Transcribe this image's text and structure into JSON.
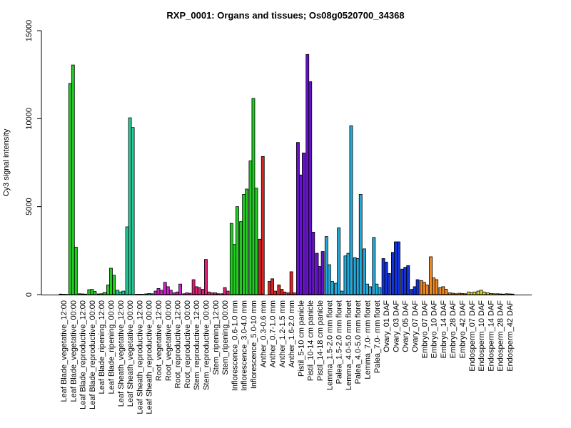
{
  "chart_data": {
    "type": "bar",
    "title": "RXP_0001: Organs and tissues; Os08g0520700_34368",
    "xlabel": "",
    "ylabel": "Cy3 signal intensity",
    "ylim": [
      0,
      15000
    ],
    "y_ticks": [
      0,
      5000,
      10000,
      15000
    ],
    "bar_border_color": "#000000",
    "groups": [
      {
        "label": "Leaf Blade_vegetative_12:00",
        "color": "#22cc22",
        "values": [
          30,
          20,
          15
        ]
      },
      {
        "label": "Leaf Blade_vegetative_00:00",
        "color": "#22cc22",
        "values": [
          12000,
          13050,
          2700
        ]
      },
      {
        "label": "Leaf Blade_reproductive_12:00",
        "color": "#22cc22",
        "values": [
          50,
          40,
          30
        ]
      },
      {
        "label": "Leaf Blade_reproductive_00:00",
        "color": "#22cc22",
        "values": [
          280,
          300,
          180
        ]
      },
      {
        "label": "Leaf Blade_ripening_12:00",
        "color": "#22cc22",
        "values": [
          40,
          50,
          120
        ]
      },
      {
        "label": "Leaf Blade_ripening_00:00",
        "color": "#22cc22",
        "values": [
          550,
          1500,
          1100
        ]
      },
      {
        "label": "Leaf Sheath_vegetative_12:00",
        "color": "#22cc99",
        "values": [
          250,
          150,
          200
        ]
      },
      {
        "label": "Leaf Sheath_vegetative_00:00",
        "color": "#22cc99",
        "values": [
          3850,
          10050,
          9500
        ]
      },
      {
        "label": "Leaf Sheath_reproductive_12:00",
        "color": "#22cc99",
        "values": [
          20,
          20,
          20
        ]
      },
      {
        "label": "Leaf Sheath_reproductive_00:00",
        "color": "#22cc99",
        "values": [
          40,
          60,
          50
        ]
      },
      {
        "label": "Root_vegetative_12:00",
        "color": "#cc22cc",
        "values": [
          200,
          350,
          250
        ]
      },
      {
        "label": "Root_vegetative_00:00",
        "color": "#cc22cc",
        "values": [
          700,
          450,
          250
        ]
      },
      {
        "label": "Root_reproductive_12:00",
        "color": "#cc22cc",
        "values": [
          100,
          150,
          600
        ]
      },
      {
        "label": "Root_reproductive_00:00",
        "color": "#cc22cc",
        "values": [
          50,
          100,
          80
        ]
      },
      {
        "label": "Stem_reproductive_12:00",
        "color": "#dd2277",
        "values": [
          850,
          450,
          400
        ]
      },
      {
        "label": "Stem_reproductive_00:00",
        "color": "#dd2277",
        "values": [
          300,
          2000,
          150
        ]
      },
      {
        "label": "Stem_ripening_12:00",
        "color": "#dd2277",
        "values": [
          100,
          100,
          50
        ]
      },
      {
        "label": "Stem_ripening_00:00",
        "color": "#dd2277",
        "values": [
          50,
          400,
          200
        ]
      },
      {
        "label": "Inflorescence_0.6-1.0 mm",
        "color": "#22cc22",
        "values": [
          4050,
          2850,
          5000
        ]
      },
      {
        "label": "Inflorescence_3.0-4.0 mm",
        "color": "#22cc22",
        "values": [
          4150,
          5700,
          6000
        ]
      },
      {
        "label": "Inflorescence_5.0-10 mm",
        "color": "#22cc22",
        "values": [
          7600,
          11150,
          6050
        ]
      },
      {
        "label": "Anther_0.3-0.6 mm",
        "color": "#dd2222",
        "values": [
          3150,
          7850,
          0
        ]
      },
      {
        "label": "Anther_0.7-1.0 mm",
        "color": "#dd2222",
        "values": [
          750,
          900,
          200
        ]
      },
      {
        "label": "Anther_1.2-1.5 mm",
        "color": "#dd2222",
        "values": [
          550,
          300,
          150
        ]
      },
      {
        "label": "Anther_1.6-2.0 mm",
        "color": "#dd2222",
        "values": [
          100,
          1300,
          100
        ]
      },
      {
        "label": "Pistil_5-10 cm panicle",
        "color": "#6611cc",
        "values": [
          8650,
          6800,
          8050
        ]
      },
      {
        "label": "Pistil_10-14 cm panicle",
        "color": "#6611cc",
        "values": [
          13650,
          12100,
          3550
        ]
      },
      {
        "label": "Pistil_14-18 cm panicle",
        "color": "#6611cc",
        "values": [
          2350,
          1600,
          2450
        ]
      },
      {
        "label": "Lemma_1.5-2.0 mm floret",
        "color": "#22aadd",
        "values": [
          3300,
          1700,
          750
        ]
      },
      {
        "label": "Palea_1.5-2.0 mm floret",
        "color": "#22aadd",
        "values": [
          650,
          3800,
          200
        ]
      },
      {
        "label": "Lemma_4.0-5.0 mm floret",
        "color": "#22aadd",
        "values": [
          2200,
          2350,
          9600
        ]
      },
      {
        "label": "Palea_4.0-5.0 mm floret",
        "color": "#22aadd",
        "values": [
          2100,
          2050,
          5700
        ]
      },
      {
        "label": "Lemma_7.0- mm floret",
        "color": "#22aadd",
        "values": [
          2600,
          600,
          450
        ]
      },
      {
        "label": "Palea_7.0- mm floret",
        "color": "#22aadd",
        "values": [
          3250,
          600,
          400
        ]
      },
      {
        "label": "Ovary_01 DAF",
        "color": "#1133dd",
        "values": [
          2050,
          1850,
          1200
        ]
      },
      {
        "label": "Ovary_03 DAF",
        "color": "#1133dd",
        "values": [
          2400,
          3000,
          3000
        ]
      },
      {
        "label": "Ovary_05 DAF",
        "color": "#1133dd",
        "values": [
          1450,
          1550,
          1650
        ]
      },
      {
        "label": "Ovary_07 DAF",
        "color": "#1133dd",
        "values": [
          300,
          450,
          850
        ]
      },
      {
        "label": "Embryo_07 DAF",
        "color": "#ee8822",
        "values": [
          800,
          700,
          550
        ]
      },
      {
        "label": "Embryo_10 DAF",
        "color": "#ee8822",
        "values": [
          2150,
          950,
          850
        ]
      },
      {
        "label": "Embryo_14 DAF",
        "color": "#ee8822",
        "values": [
          400,
          450,
          300
        ]
      },
      {
        "label": "Embryo_28 DAF",
        "color": "#ee8822",
        "values": [
          100,
          80,
          50
        ]
      },
      {
        "label": "Embryo_42 DAF",
        "color": "#ee8822",
        "values": [
          80,
          60,
          50
        ]
      },
      {
        "label": "Endosperm_07 DAF",
        "color": "#dddd33",
        "values": [
          150,
          100,
          150
        ]
      },
      {
        "label": "Endosperm_10 DAF",
        "color": "#dddd33",
        "values": [
          200,
          250,
          150
        ]
      },
      {
        "label": "Endosperm_14 DAF",
        "color": "#dddd33",
        "values": [
          100,
          60,
          50
        ]
      },
      {
        "label": "Endosperm_28 DAF",
        "color": "#dddd33",
        "values": [
          50,
          40,
          30
        ]
      },
      {
        "label": "Endosperm_42 DAF",
        "color": "#dddd33",
        "values": [
          50,
          40,
          30
        ]
      }
    ]
  }
}
